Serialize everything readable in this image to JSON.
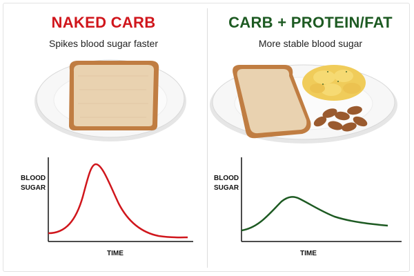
{
  "left_panel": {
    "title": "NAKED CARB",
    "subtitle": "Spikes blood sugar faster",
    "title_color": "#d0161c",
    "curve_color": "#d0161c",
    "illustration": "toast-on-plate",
    "chart": {
      "ylabel_line1": "BLOOD",
      "ylabel_line2": "SUGAR",
      "xlabel": "TIME"
    }
  },
  "right_panel": {
    "title": "CARB + PROTEIN/FAT",
    "subtitle": "More stable blood sugar",
    "title_color": "#1d5a22",
    "curve_color": "#1d5a22",
    "illustration": "toast-eggs-almonds-on-plate",
    "chart": {
      "ylabel_line1": "BLOOD",
      "ylabel_line2": "SUGAR",
      "xlabel": "TIME"
    }
  },
  "chart_data": [
    {
      "type": "line",
      "title": "",
      "xlabel": "TIME",
      "ylabel": "BLOOD SUGAR",
      "series": [
        {
          "x": [
            0,
            0.1,
            0.2,
            0.3,
            0.4,
            0.5,
            0.6,
            0.7,
            0.8,
            0.9,
            1.0
          ],
          "y": [
            0.1,
            0.3,
            0.8,
            1.0,
            0.7,
            0.4,
            0.25,
            0.15,
            0.1,
            0.08,
            0.07
          ]
        }
      ]
    },
    {
      "type": "line",
      "title": "",
      "xlabel": "TIME",
      "ylabel": "BLOOD SUGAR",
      "series": [
        {
          "x": [
            0,
            0.1,
            0.2,
            0.3,
            0.4,
            0.5,
            0.6,
            0.7,
            0.8,
            0.9,
            1.0
          ],
          "y": [
            0.1,
            0.2,
            0.4,
            0.45,
            0.4,
            0.33,
            0.28,
            0.24,
            0.21,
            0.2,
            0.19
          ]
        }
      ]
    }
  ]
}
